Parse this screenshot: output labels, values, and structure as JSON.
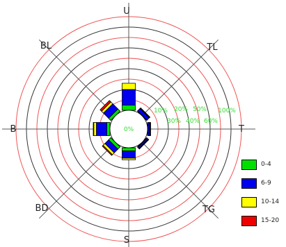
{
  "chart_data": {
    "type": "windrose",
    "directions": [
      {
        "key": "U",
        "label": "U",
        "angle": 0
      },
      {
        "key": "TL",
        "label": "TL",
        "angle": 45
      },
      {
        "key": "T",
        "label": "T",
        "angle": 90
      },
      {
        "key": "TG",
        "label": "TG",
        "angle": 135
      },
      {
        "key": "S",
        "label": "S",
        "angle": 180
      },
      {
        "key": "BD",
        "label": "BD",
        "angle": 225
      },
      {
        "key": "B",
        "label": "B",
        "angle": 270
      },
      {
        "key": "BL",
        "label": "BL",
        "angle": 315
      }
    ],
    "speed_classes": [
      {
        "label": "0-4",
        "color": "#00e000"
      },
      {
        "label": "6-9",
        "color": "#0000ee"
      },
      {
        "label": "10-14",
        "color": "#ffff00"
      },
      {
        "label": "15-20",
        "color": "#ee0000"
      }
    ],
    "calm_label": "0%",
    "ring_labels": [
      "10%",
      "20%",
      "30%",
      "40%",
      "50%",
      "60%",
      "100%"
    ],
    "ring_step_percent": 10,
    "ring_count": 9,
    "series": [
      {
        "name": "0-4",
        "values": [
          5,
          0.5,
          0.5,
          0.5,
          3,
          3,
          3,
          3
        ]
      },
      {
        "name": "6-9",
        "values": [
          15,
          3,
          1.5,
          1.5,
          7,
          5,
          10,
          7
        ]
      },
      {
        "name": "10-14",
        "values": [
          6,
          0.5,
          0.5,
          0.5,
          1.5,
          2.5,
          2.5,
          2.5
        ]
      },
      {
        "name": "15-20",
        "values": [
          0,
          0.5,
          0.5,
          0.3,
          0,
          1,
          0.5,
          2
        ]
      }
    ],
    "units": "percent"
  }
}
